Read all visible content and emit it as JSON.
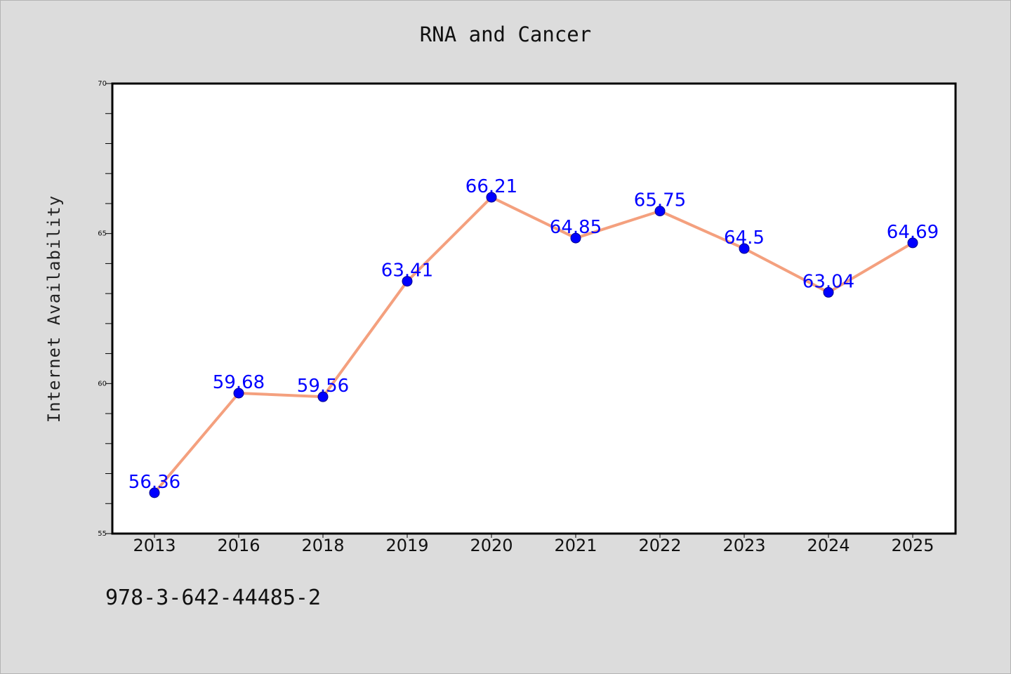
{
  "chart_data": {
    "type": "line",
    "title": "RNA and Cancer",
    "xlabel": "",
    "ylabel": "Internet Availability",
    "categories": [
      "2013",
      "2016",
      "2018",
      "2019",
      "2020",
      "2021",
      "2022",
      "2023",
      "2024",
      "2025"
    ],
    "series": [
      {
        "values": [
          56.36,
          59.68,
          59.56,
          63.41,
          66.21,
          64.85,
          65.75,
          64.5,
          63.04,
          64.69
        ],
        "line_color": "#f4a07e",
        "marker_color": "#0000ff"
      }
    ],
    "data_labels": [
      "56.36",
      "59.68",
      "59.56",
      "63.41",
      "66.21",
      "64.85",
      "65.75",
      "64.5",
      "63.04",
      "64.69"
    ],
    "ylim": [
      55,
      70
    ],
    "yticks": [
      "55",
      "60",
      "65",
      "70"
    ],
    "grid": false,
    "legend": "none"
  },
  "footnote": "978-3-642-44485-2"
}
